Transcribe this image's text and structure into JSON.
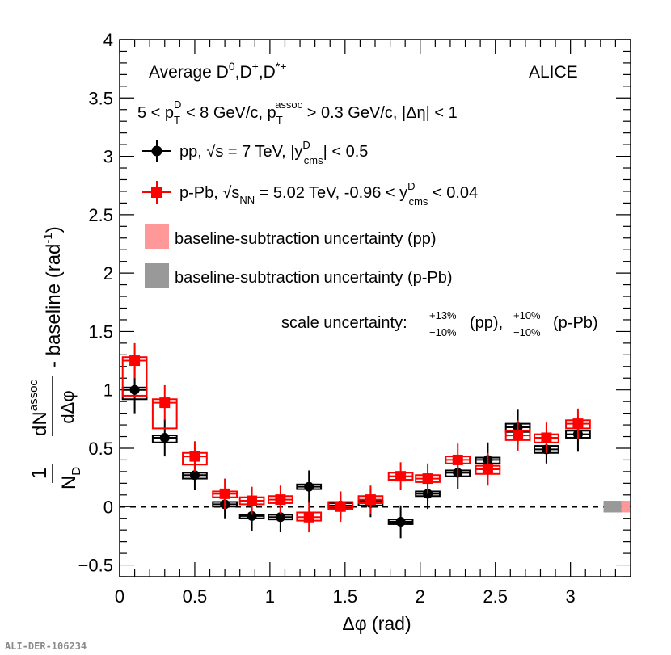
{
  "chart_data": {
    "type": "scatter",
    "xlabel": "Δφ (rad)",
    "ylabel_prefix": "1",
    "ylabel_den": "N",
    "ylabel_den_sub": "D",
    "ylabel_num": "dN",
    "ylabel_num_sup": "assoc",
    "ylabel_dphi": "dΔφ",
    "ylabel_suffix": "- baseline (rad",
    "ylabel_suffix_sup": "-1",
    "ylabel_suffix_end": ")",
    "xlim": [
      0,
      3.4
    ],
    "ylim": [
      -0.6,
      4
    ],
    "x_ticks": [
      0,
      0.5,
      1,
      1.5,
      2,
      2.5,
      3
    ],
    "x_tick_labels": [
      "0",
      "0.5",
      "1",
      "1.5",
      "2",
      "2.5",
      "3"
    ],
    "y_ticks": [
      -0.5,
      0,
      0.5,
      1,
      1.5,
      2,
      2.5,
      3,
      3.5,
      4
    ],
    "y_tick_labels": [
      "−0.5",
      "0",
      "0.5",
      "1",
      "1.5",
      "2",
      "2.5",
      "3",
      "3.5",
      "4"
    ],
    "baseline_y": 0,
    "bin_half_width": 0.08,
    "series": [
      {
        "name": "pp",
        "color": "#000000",
        "marker": "circle",
        "x": [
          0.1,
          0.3,
          0.5,
          0.7,
          0.88,
          1.07,
          1.26,
          1.47,
          1.67,
          1.87,
          2.05,
          2.25,
          2.45,
          2.65,
          2.84,
          3.05
        ],
        "y": [
          1.0,
          0.59,
          0.27,
          0.02,
          -0.08,
          -0.09,
          0.17,
          0.01,
          0.03,
          -0.13,
          0.11,
          0.29,
          0.4,
          0.68,
          0.49,
          0.62
        ],
        "err": [
          0.2,
          0.16,
          0.13,
          0.12,
          0.13,
          0.13,
          0.14,
          0.12,
          0.12,
          0.14,
          0.13,
          0.14,
          0.15,
          0.15,
          0.12,
          0.15
        ],
        "box_lo": [
          0.92,
          0.55,
          0.24,
          0.0,
          -0.1,
          -0.11,
          0.15,
          -0.01,
          0.01,
          -0.15,
          0.09,
          0.26,
          0.37,
          0.64,
          0.46,
          0.59
        ],
        "box_hi": [
          1.02,
          0.61,
          0.29,
          0.04,
          -0.07,
          -0.07,
          0.19,
          0.03,
          0.05,
          -0.11,
          0.13,
          0.31,
          0.42,
          0.71,
          0.52,
          0.65
        ]
      },
      {
        "name": "p-Pb",
        "color": "#ff0000",
        "marker": "square",
        "x": [
          0.1,
          0.3,
          0.5,
          0.7,
          0.88,
          1.07,
          1.26,
          1.47,
          1.67,
          1.87,
          2.05,
          2.25,
          2.45,
          2.65,
          2.84,
          3.05
        ],
        "y": [
          1.25,
          0.89,
          0.43,
          0.11,
          0.05,
          0.06,
          -0.09,
          0.0,
          0.06,
          0.26,
          0.24,
          0.4,
          0.32,
          0.61,
          0.59,
          0.71
        ],
        "err": [
          0.15,
          0.15,
          0.13,
          0.13,
          0.12,
          0.12,
          0.13,
          0.13,
          0.12,
          0.12,
          0.13,
          0.14,
          0.14,
          0.13,
          0.13,
          0.13
        ],
        "box_lo": [
          0.95,
          0.67,
          0.36,
          0.08,
          0.02,
          0.03,
          -0.12,
          -0.02,
          0.03,
          0.23,
          0.21,
          0.37,
          0.28,
          0.57,
          0.55,
          0.67
        ],
        "box_hi": [
          1.28,
          0.92,
          0.46,
          0.13,
          0.08,
          0.09,
          -0.05,
          0.04,
          0.09,
          0.29,
          0.27,
          0.43,
          0.35,
          0.65,
          0.62,
          0.74
        ]
      }
    ],
    "baseline_boxes": [
      {
        "name": "pp baseline",
        "color": "#999999",
        "x0": 3.22,
        "x1": 3.34,
        "y0": -0.05,
        "y1": 0.05
      },
      {
        "name": "p-Pb baseline",
        "color": "#ff9999",
        "x0": 3.34,
        "x1": 3.46,
        "y0": -0.05,
        "y1": 0.05
      }
    ]
  },
  "annotations": {
    "average_prefix": "Average D",
    "average_sup0": "0",
    "average_d1": ",D",
    "average_sup1": "+",
    "average_d2": ",D",
    "average_sup2": "*+",
    "alice": "ALICE",
    "kin_5": "5 < p",
    "kin_T": "T",
    "kin_D": "D",
    "kin_mid": " < 8 GeV/c, p",
    "kin_T2": "T",
    "kin_assoc": "assoc",
    "kin_end": " > 0.3 GeV/c, |Δη| < 1",
    "legend_pp": "pp, √s = 7 TeV, |y",
    "legend_pp_sub": "cms",
    "legend_pp_sup": "D",
    "legend_pp_end": "| < 0.5",
    "legend_ppb": "p-Pb, √s",
    "legend_ppb_nn": "NN",
    "legend_ppb_mid": " = 5.02 TeV, -0.96 < y",
    "legend_ppb_sub": "cms",
    "legend_ppb_sup": "D",
    "legend_ppb_end": " < 0.04",
    "legend_baseline_pp": "baseline-subtraction uncertainty (pp)",
    "legend_baseline_ppb": "baseline-subtraction uncertainty (p-Pb)",
    "scale_label": "scale uncertainty:",
    "scale_pp_up": "+13%",
    "scale_pp_dn": "−10%",
    "scale_pp": "(pp),",
    "scale_ppb_up": "+10%",
    "scale_ppb_dn": "−10%",
    "scale_ppb": "(p-Pb)"
  },
  "footer": "ALI-DER-106234"
}
